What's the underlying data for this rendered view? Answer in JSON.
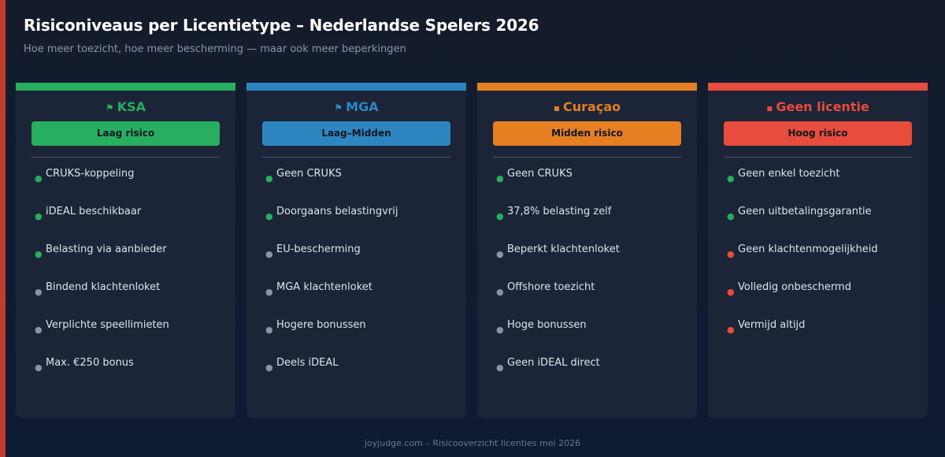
{
  "header": {
    "title": "Risiconiveaus per Licentietype – Nederlandse Spelers 2026",
    "subtitle": "Hoe meer toezicht, hoe meer bescherming — maar ook meer beperkingen"
  },
  "colors": {
    "green": "#27ae60",
    "blue": "#2e86c1",
    "orange": "#e67e22",
    "red": "#e74c3c",
    "grey": "#8a94a8"
  },
  "cards": [
    {
      "name": "KSA",
      "flag_icon": "flag-nl-icon",
      "badge": "Laag risico",
      "color": "#27ae60",
      "items": [
        {
          "text": "CRUKS-koppeling",
          "bullet": "#27ae60"
        },
        {
          "text": "iDEAL beschikbaar",
          "bullet": "#27ae60"
        },
        {
          "text": "Belasting via aanbieder",
          "bullet": "#27ae60"
        },
        {
          "text": "Bindend klachtenloket",
          "bullet": "#8a94a8"
        },
        {
          "text": "Verplichte speellimieten",
          "bullet": "#8a94a8"
        },
        {
          "text": "Max. €250 bonus",
          "bullet": "#8a94a8"
        }
      ]
    },
    {
      "name": "MGA",
      "flag_icon": "flag-mt-icon",
      "badge": "Laag–Midden",
      "color": "#2e86c1",
      "items": [
        {
          "text": "Geen CRUKS",
          "bullet": "#27ae60"
        },
        {
          "text": "Doorgaans belastingvrij",
          "bullet": "#27ae60"
        },
        {
          "text": "EU-bescherming",
          "bullet": "#8a94a8"
        },
        {
          "text": "MGA klachtenloket",
          "bullet": "#8a94a8"
        },
        {
          "text": "Hogere bonussen",
          "bullet": "#8a94a8"
        },
        {
          "text": "Deels iDEAL",
          "bullet": "#8a94a8"
        }
      ]
    },
    {
      "name": "Curaçao",
      "flag_icon": "island-icon",
      "badge": "Midden risico",
      "color": "#e67e22",
      "items": [
        {
          "text": "Geen CRUKS",
          "bullet": "#27ae60"
        },
        {
          "text": "37,8% belasting zelf",
          "bullet": "#27ae60"
        },
        {
          "text": "Beperkt klachtenloket",
          "bullet": "#8a94a8"
        },
        {
          "text": "Offshore toezicht",
          "bullet": "#8a94a8"
        },
        {
          "text": "Hoge bonussen",
          "bullet": "#8a94a8"
        },
        {
          "text": "Geen iDEAL direct",
          "bullet": "#8a94a8"
        }
      ]
    },
    {
      "name": "Geen licentie",
      "flag_icon": "warning-icon",
      "badge": "Hoog risico",
      "color": "#e74c3c",
      "items": [
        {
          "text": "Geen enkel toezicht",
          "bullet": "#27ae60"
        },
        {
          "text": "Geen uitbetalingsgarantie",
          "bullet": "#27ae60"
        },
        {
          "text": "Geen klachtenmogelijkheid",
          "bullet": "#e74c3c"
        },
        {
          "text": "Volledig onbeschermd",
          "bullet": "#e74c3c"
        },
        {
          "text": "Vermijd altijd",
          "bullet": "#e74c3c"
        }
      ]
    }
  ],
  "footer": "joyjudge.com – Risicooverzicht licenties mei 2026"
}
